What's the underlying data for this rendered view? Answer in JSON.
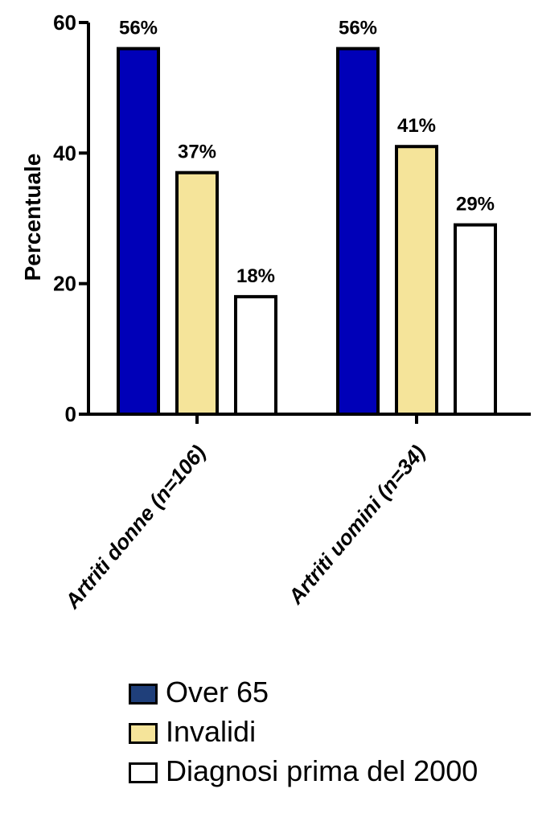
{
  "chart_data": {
    "type": "bar",
    "ylabel": "Percentuale",
    "ylim": [
      0,
      60
    ],
    "yticks": [
      0,
      20,
      40,
      60
    ],
    "categories": [
      "Artriti donne (n=106)",
      "Artriti uomini (n=34)"
    ],
    "series": [
      {
        "name": "Over 65",
        "values": [
          56,
          56
        ],
        "labels": [
          "56%",
          "56%"
        ],
        "color": "#0000b8"
      },
      {
        "name": "Invalidi",
        "values": [
          37,
          41
        ],
        "labels": [
          "37%",
          "41%"
        ],
        "color": "#f5e49a"
      },
      {
        "name": "Diagnosi prima del 2000",
        "values": [
          18,
          29
        ],
        "labels": [
          "18%",
          "29%"
        ],
        "color": "#ffffff"
      }
    ],
    "legend": {
      "position": "bottom",
      "items": [
        {
          "label": "Over 65",
          "color": "#1f3f7a"
        },
        {
          "label": "Invalidi",
          "color": "#f5e49a"
        },
        {
          "label": "Diagnosi prima del 2000",
          "color": "#ffffff"
        }
      ]
    }
  }
}
